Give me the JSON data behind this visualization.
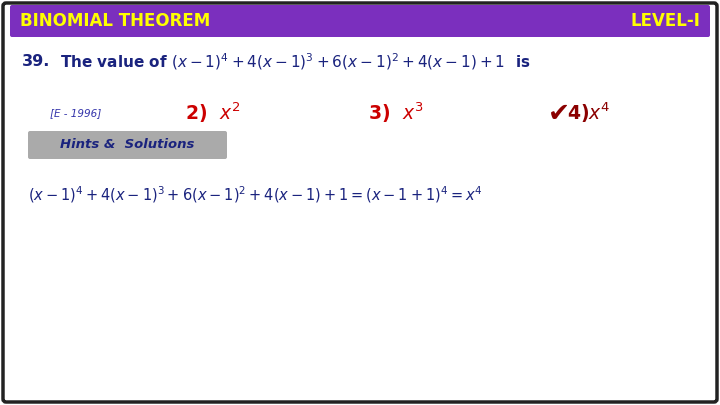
{
  "title_left": "BINOMIAL THEOREM",
  "title_right": "LEVEL-I",
  "title_bg_color": "#7B2FBE",
  "title_text_color": "#FFFF00",
  "bg_color": "#FFFFFF",
  "border_color": "#222222",
  "q_number": "39.",
  "q_color": "#1A237E",
  "year_tag": "[E - 1996]",
  "year_color": "#3333AA",
  "opt_color_wrong": "#CC0000",
  "opt_color_correct": "#8B0000",
  "hints_label": "Hints &  Solutions",
  "hints_bg": "#AAAAAA",
  "hints_text_color": "#1A237E",
  "solution_color": "#1A237E"
}
